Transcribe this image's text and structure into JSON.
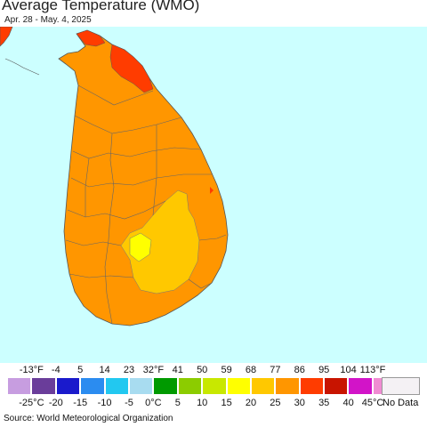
{
  "title": "Average Temperature (WMO)",
  "subtitle": "Apr. 28 - May. 4, 2025",
  "source": "Source: World Meteorological Organization",
  "legend": {
    "f_labels": [
      "-13°F",
      "-4",
      "5",
      "14",
      "23",
      "32°F",
      "41",
      "50",
      "59",
      "68",
      "77",
      "86",
      "95",
      "104",
      "113°F"
    ],
    "c_labels": [
      "-25°C",
      "-20",
      "-15",
      "-10",
      "-5",
      "0°C",
      "5",
      "10",
      "15",
      "20",
      "25",
      "30",
      "35",
      "40",
      "45°C"
    ],
    "colors": [
      "#c79de0",
      "#6a3d9a",
      "#1a1acc",
      "#2b8cf0",
      "#22c8f0",
      "#a8dcf0",
      "#009a00",
      "#8ccc00",
      "#c8e800",
      "#ffff00",
      "#ffc800",
      "#ff9600",
      "#ff3c00",
      "#c81400",
      "#d214c8",
      "#f08cd2"
    ],
    "no_data_label": "No Data",
    "no_data_color": "#f4f1f4"
  },
  "map": {
    "ocean_color": "#ccffff",
    "land_color": "#ff9600",
    "hot_color": "#ff3c00",
    "warm_color": "#ffc800",
    "cool_color": "#ffff00",
    "border_color": "#666666"
  }
}
